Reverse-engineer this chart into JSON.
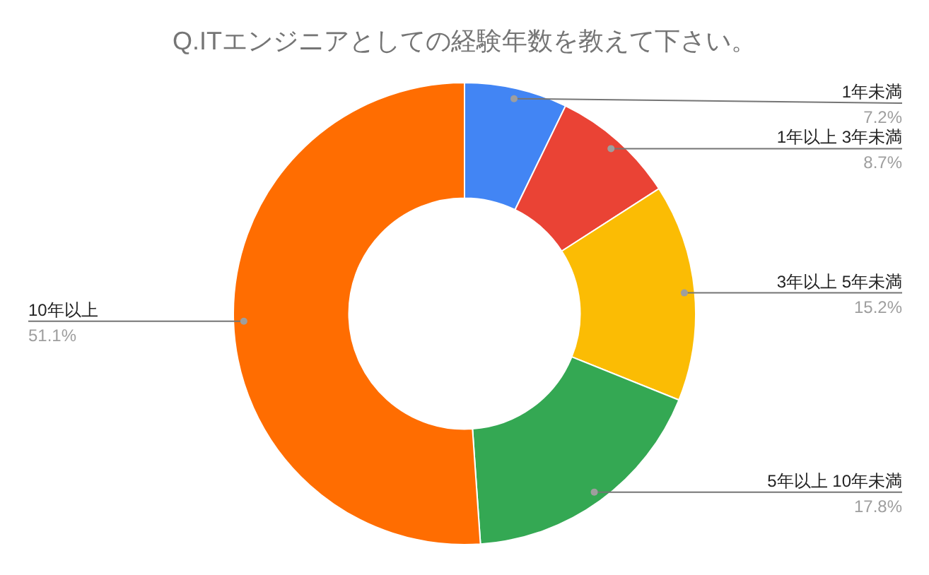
{
  "chart_data": {
    "type": "donut",
    "title": "Q.ITエンジニアとしての経験年数を教えて下さい。",
    "categories": [
      "1年未満",
      "1年以上 3年未満",
      "3年以上 5年未満",
      "5年以上 10年未満",
      "10年以上"
    ],
    "values": [
      7.2,
      8.7,
      15.2,
      17.8,
      51.1
    ],
    "colors": [
      "#4285f4",
      "#ea4335",
      "#fbbc04",
      "#34a853",
      "#ff6d01"
    ],
    "value_labels": [
      "7.2%",
      "8.7%",
      "15.2%",
      "17.8%",
      "51.1%"
    ]
  }
}
